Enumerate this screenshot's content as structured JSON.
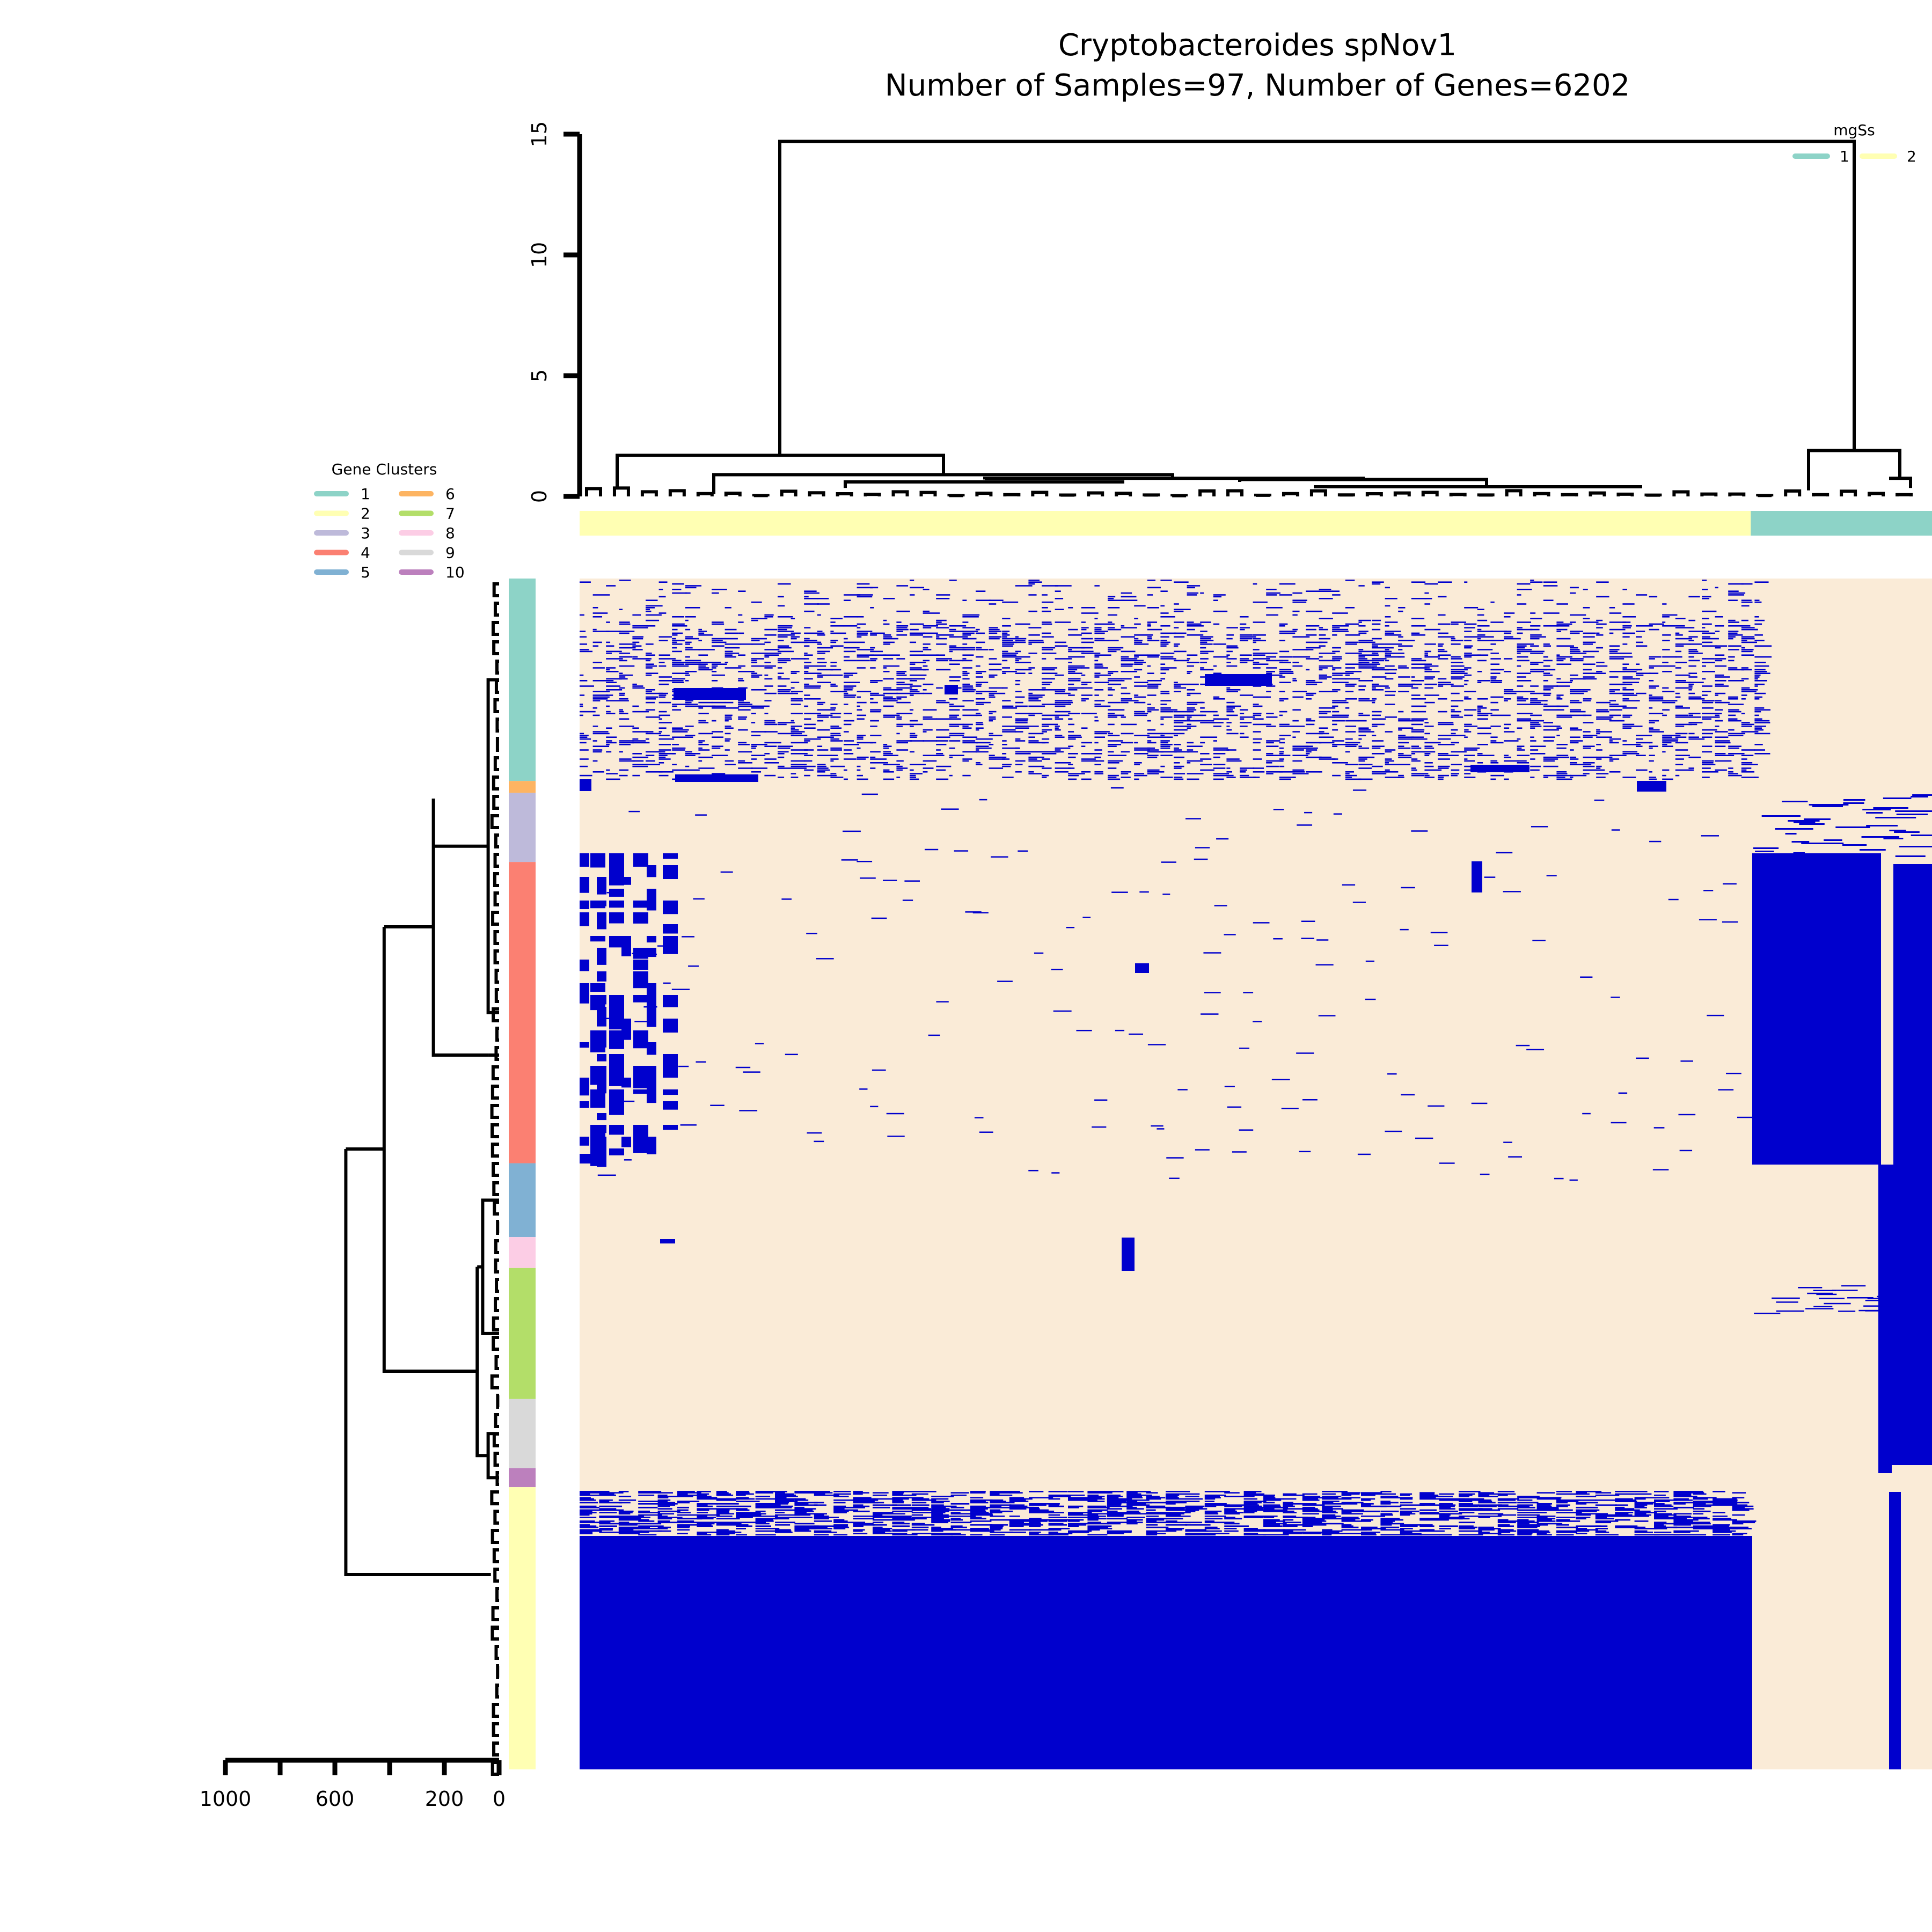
{
  "chart_data": {
    "type": "heatmap",
    "title": "Cryptobacteroides spNov1",
    "subtitle": "Number of Samples=97, Number of Genes=6202",
    "cell_colors": {
      "present": "#0000CD",
      "absent": "#FAEBD7"
    },
    "sample_dendrogram": {
      "axis_ticks": [
        "0",
        "5",
        "10",
        "15"
      ],
      "ylim": [
        0,
        15
      ],
      "root_height": 14.7,
      "left_branch_height": 1.7,
      "right_branch_height": 1.9
    },
    "gene_dendrogram": {
      "axis_ticks": [
        "1000",
        "600",
        "200",
        "0"
      ],
      "xlim": [
        1000,
        0
      ]
    },
    "sample_groups": {
      "legend_title": "mgSs",
      "entries": [
        {
          "label": "1",
          "color": "#8DD3C7"
        },
        {
          "label": "2",
          "color": "#FFFFB3"
        }
      ],
      "bar": [
        {
          "group": "2",
          "from": 0,
          "to": 0.866
        },
        {
          "group": "1",
          "from": 0.866,
          "to": 1.0
        }
      ]
    },
    "gene_clusters": {
      "legend_title": "Gene Clusters",
      "entries": [
        {
          "label": "1",
          "color": "#8DD3C7"
        },
        {
          "label": "2",
          "color": "#FFFFB3"
        },
        {
          "label": "3",
          "color": "#BEBADA"
        },
        {
          "label": "4",
          "color": "#FB8072"
        },
        {
          "label": "5",
          "color": "#80B1D3"
        },
        {
          "label": "6",
          "color": "#FDB462"
        },
        {
          "label": "7",
          "color": "#B3DE69"
        },
        {
          "label": "8",
          "color": "#FCCDE5"
        },
        {
          "label": "9",
          "color": "#D9D9D9"
        },
        {
          "label": "10",
          "color": "#BC80BD"
        }
      ],
      "bar_order": [
        {
          "cluster": "1",
          "fraction": 0.17
        },
        {
          "cluster": "6",
          "fraction": 0.01
        },
        {
          "cluster": "3",
          "fraction": 0.058
        },
        {
          "cluster": "4",
          "fraction": 0.253
        },
        {
          "cluster": "5",
          "fraction": 0.062
        },
        {
          "cluster": "8",
          "fraction": 0.026
        },
        {
          "cluster": "7",
          "fraction": 0.11
        },
        {
          "cluster": "9",
          "fraction": 0.058
        },
        {
          "cluster": "10",
          "fraction": 0.016
        },
        {
          "cluster": "2",
          "fraction": 0.237
        }
      ]
    }
  }
}
